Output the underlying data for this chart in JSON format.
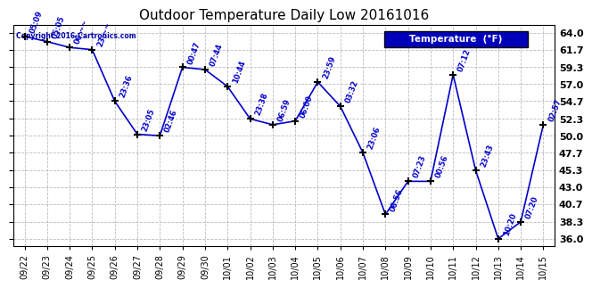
{
  "title": "Outdoor Temperature Daily Low 20161016",
  "copyright": "Copyright 2016-Cartronics.com",
  "legend_label": "Temperature  (°F)",
  "dates": [
    "09/22",
    "09/23",
    "09/24",
    "09/25",
    "09/26",
    "09/27",
    "09/28",
    "09/29",
    "09/30",
    "10/01",
    "10/02",
    "10/03",
    "10/04",
    "10/05",
    "10/06",
    "10/07",
    "10/08",
    "10/09",
    "10/10",
    "10/11",
    "10/12",
    "10/13",
    "10/14",
    "10/15"
  ],
  "temperatures": [
    63.5,
    62.8,
    62.0,
    61.7,
    54.7,
    50.2,
    50.0,
    59.3,
    59.0,
    56.7,
    52.3,
    51.5,
    52.0,
    57.3,
    54.0,
    47.7,
    39.3,
    43.8,
    43.8,
    58.3,
    45.3,
    36.0,
    38.3,
    51.5
  ],
  "ann_labels": [
    "05:09",
    "05:05",
    "06:~~",
    "23:~~",
    "23:36",
    "23:05",
    "02:46",
    "00:47",
    "07:44",
    "10:44",
    "23:38",
    "06:59",
    "06:00",
    "23:59",
    "03:32",
    "23:06",
    "06:56",
    "07:23",
    "00:56",
    "07:12",
    "23:43",
    "10:20",
    "07:20",
    "02:57"
  ],
  "ylim_min": 35.0,
  "ylim_max": 65.0,
  "yticks": [
    36.0,
    38.3,
    40.7,
    43.0,
    45.3,
    47.7,
    50.0,
    52.3,
    54.7,
    57.0,
    59.3,
    61.7,
    64.0
  ],
  "line_color": "#0000cc",
  "marker_color": "#000000",
  "bg_color": "#ffffff",
  "grid_color": "#bbbbbb",
  "title_color": "#000000",
  "ann_color": "#0000cc",
  "legend_bg": "#0000bb",
  "legend_text_color": "#ffffff",
  "copyright_color": "#0000aa"
}
